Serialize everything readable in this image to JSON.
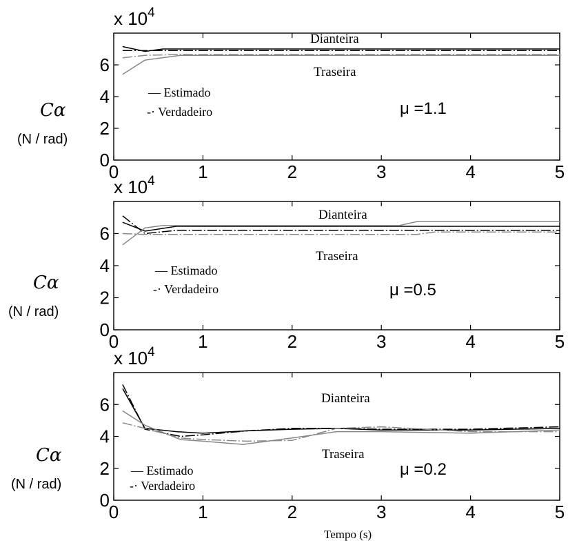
{
  "chart_data": [
    {
      "type": "line",
      "multiplier_label": "x 10",
      "multiplier_exp": "4",
      "ylabel_symbol": "Cα",
      "ylabel_unit": "(N / rad)",
      "xlim": [
        0,
        5
      ],
      "ylim": [
        0,
        8
      ],
      "x_ticks": [
        "0",
        "1",
        "2",
        "3",
        "4",
        "5"
      ],
      "y_ticks": [
        "0",
        "2",
        "4",
        "6"
      ],
      "mu_label": "μ =1.1",
      "legend": [
        "—  Estimado",
        "-·  Verdadeiro"
      ],
      "annotations": [
        "Dianteira",
        "Traseira"
      ],
      "series": [
        {
          "style": "solid",
          "color": "#000000",
          "x": [
            0.1,
            0.35,
            0.55,
            0.75,
            5.0
          ],
          "y": [
            7.15,
            6.85,
            7.0,
            7.0,
            7.0
          ]
        },
        {
          "style": "dashdot",
          "color": "#000000",
          "x": [
            0.1,
            0.35,
            0.75,
            5.0
          ],
          "y": [
            6.9,
            6.9,
            6.9,
            6.9
          ]
        },
        {
          "style": "solid",
          "color": "#888888",
          "x": [
            0.1,
            0.35,
            0.75,
            5.0
          ],
          "y": [
            5.4,
            6.3,
            6.6,
            6.6
          ]
        },
        {
          "style": "dashdot",
          "color": "#888888",
          "x": [
            0.1,
            0.35,
            0.75,
            5.0
          ],
          "y": [
            6.45,
            6.6,
            6.65,
            6.65
          ]
        }
      ]
    },
    {
      "type": "line",
      "multiplier_label": "x 10",
      "multiplier_exp": "4",
      "ylabel_symbol": "Cα",
      "ylabel_unit": "(N / rad)",
      "xlim": [
        0,
        5
      ],
      "ylim": [
        0,
        8
      ],
      "x_ticks": [
        "0",
        "1",
        "2",
        "3",
        "4",
        "5"
      ],
      "y_ticks": [
        "0",
        "2",
        "4",
        "6"
      ],
      "mu_label": "μ =0.5",
      "legend": [
        "—  Estimado",
        "-·  Verdadeiro"
      ],
      "annotations": [
        "Dianteira",
        "Traseira"
      ],
      "series": [
        {
          "style": "solid",
          "color": "#000000",
          "x": [
            0.1,
            0.35,
            0.7,
            5.0
          ],
          "y": [
            6.7,
            6.15,
            6.45,
            6.45
          ]
        },
        {
          "style": "dashdot",
          "color": "#000000",
          "x": [
            0.1,
            0.35,
            0.7,
            5.0
          ],
          "y": [
            7.1,
            6.0,
            6.2,
            6.2
          ]
        },
        {
          "style": "solid",
          "color": "#888888",
          "x": [
            0.1,
            0.35,
            0.55,
            3.2,
            3.4,
            5.0
          ],
          "y": [
            5.3,
            6.35,
            6.5,
            6.5,
            6.75,
            6.75
          ]
        },
        {
          "style": "dashdot",
          "color": "#888888",
          "x": [
            0.1,
            0.35,
            3.4,
            3.6,
            5.0
          ],
          "y": [
            6.0,
            5.95,
            5.95,
            6.1,
            6.1
          ]
        }
      ]
    },
    {
      "type": "line",
      "multiplier_label": "x 10",
      "multiplier_exp": "4",
      "ylabel_symbol": "Cα",
      "ylabel_unit": "(N / rad)",
      "xlim": [
        0,
        5
      ],
      "ylim": [
        0,
        8
      ],
      "x_ticks": [
        "0",
        "1",
        "2",
        "3",
        "4",
        "5"
      ],
      "y_ticks": [
        "0",
        "2",
        "4",
        "6"
      ],
      "mu_label": "μ =0.2",
      "legend": [
        "—  Estimado",
        "-·  Verdadeiro"
      ],
      "annotations": [
        "Dianteira",
        "Traseira"
      ],
      "xlabel": "Tempo (s)",
      "series": [
        {
          "style": "solid",
          "color": "#000000",
          "x": [
            0.1,
            0.35,
            0.7,
            1.0,
            1.5,
            2.0,
            2.5,
            3.0,
            4.0,
            5.0
          ],
          "y": [
            7.0,
            4.5,
            4.3,
            4.2,
            4.35,
            4.45,
            4.5,
            4.4,
            4.4,
            4.5
          ]
        },
        {
          "style": "dashdot",
          "color": "#000000",
          "x": [
            0.1,
            0.35,
            0.75,
            1.0,
            1.5,
            2.0,
            2.5,
            3.0,
            4.0,
            5.0
          ],
          "y": [
            7.25,
            4.45,
            4.0,
            4.1,
            4.35,
            4.5,
            4.5,
            4.45,
            4.45,
            4.6
          ]
        },
        {
          "style": "solid",
          "color": "#888888",
          "x": [
            0.1,
            0.35,
            0.75,
            1.0,
            1.45,
            2.0,
            2.5,
            3.0,
            4.0,
            5.0
          ],
          "y": [
            5.6,
            4.7,
            3.8,
            3.7,
            3.5,
            3.9,
            4.3,
            4.3,
            4.2,
            4.4
          ]
        },
        {
          "style": "dashdot",
          "color": "#888888",
          "x": [
            0.1,
            0.35,
            0.75,
            1.0,
            1.5,
            2.0,
            2.5,
            3.0,
            4.0,
            5.0
          ],
          "y": [
            4.85,
            4.5,
            3.9,
            3.8,
            3.7,
            3.75,
            4.5,
            4.6,
            4.3,
            4.3
          ]
        }
      ]
    }
  ]
}
